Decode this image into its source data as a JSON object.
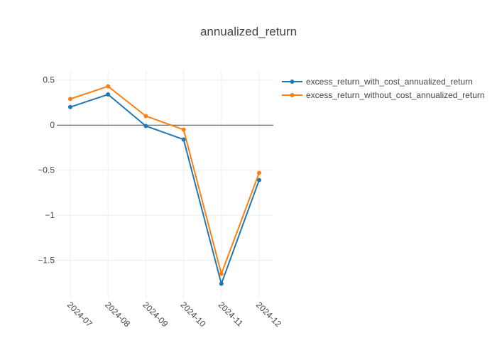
{
  "chart_data": {
    "type": "line",
    "title": "annualized_return",
    "xlabel": "",
    "ylabel": "",
    "categories": [
      "2024-07",
      "2024-08",
      "2024-09",
      "2024-10",
      "2024-11",
      "2024-12"
    ],
    "yticks": [
      0.5,
      0,
      -0.5,
      -1,
      -1.5
    ],
    "ytick_labels": [
      "0.5",
      "0",
      "−0.5",
      "−1",
      "−1.5"
    ],
    "ylim": [
      -1.92,
      0.6
    ],
    "grid": true,
    "legend_position": "top-right",
    "series": [
      {
        "name": "excess_return_with_cost_annualized_return",
        "color": "#1f77b4",
        "values": [
          0.2,
          0.34,
          -0.01,
          -0.16,
          -1.76,
          -0.61
        ]
      },
      {
        "name": "excess_return_without_cost_annualized_return",
        "color": "#ff7f0e",
        "values": [
          0.29,
          0.43,
          0.1,
          -0.05,
          -1.65,
          -0.53
        ]
      }
    ]
  }
}
